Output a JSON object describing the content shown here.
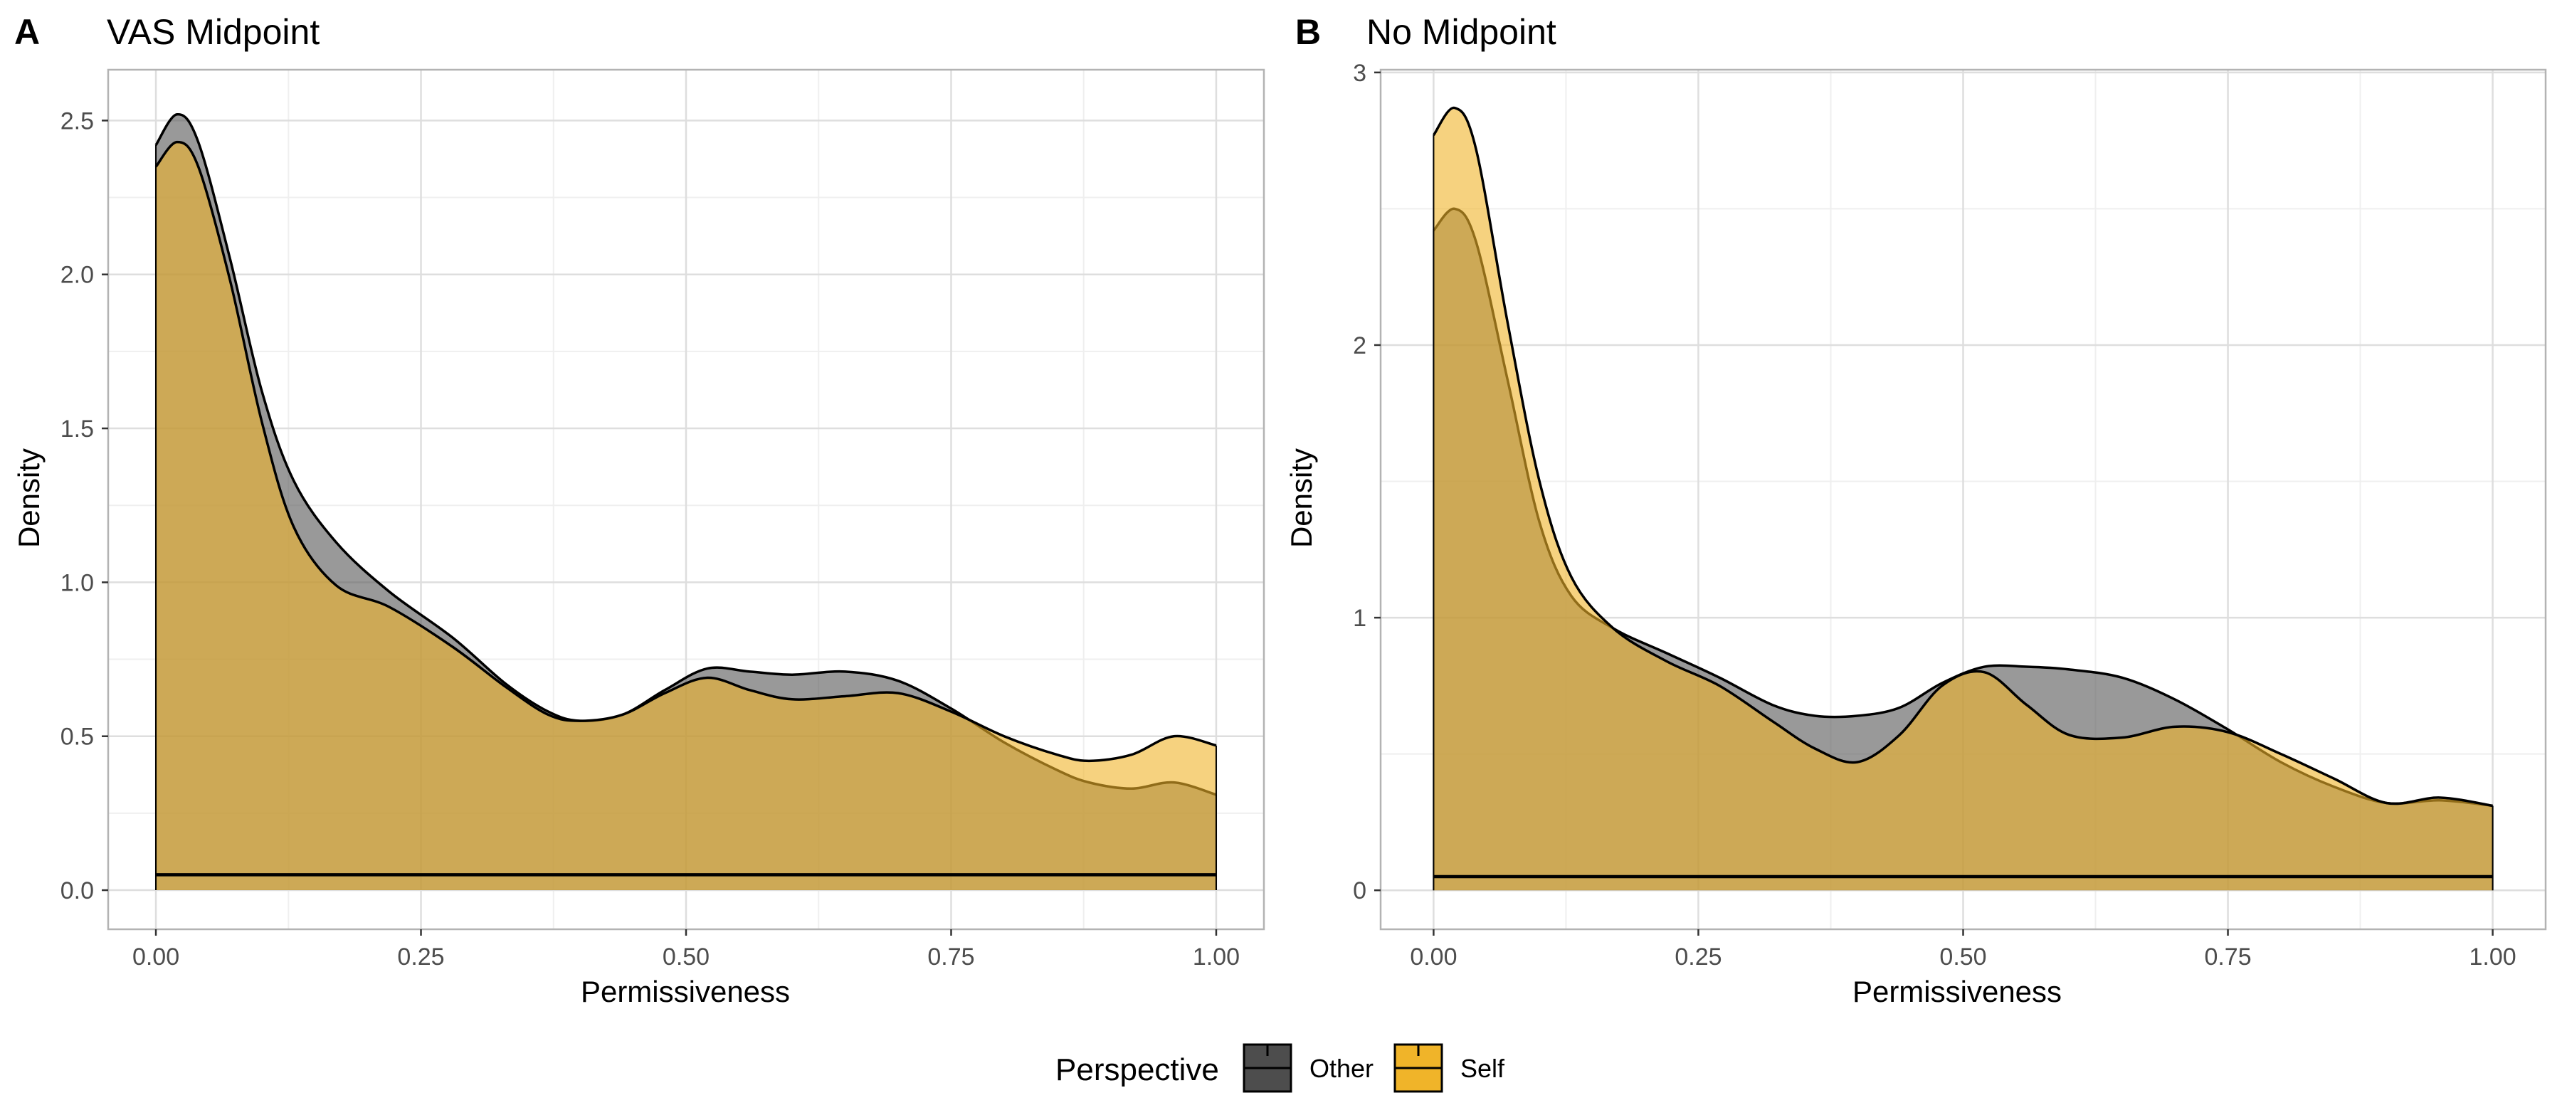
{
  "figure": {
    "legend": {
      "title": "Perspective",
      "placement": "bottom",
      "items": [
        {
          "label": "Other",
          "fill": "#4d4d4d",
          "line": "#000000"
        },
        {
          "label": "Self",
          "fill": "#f0b429",
          "line": "#000000"
        }
      ]
    },
    "colors": {
      "other_fill": "#555555",
      "self_fill": "#f0b429",
      "overlap_look": "#b39a5e",
      "panel_border": "#b3b3b3",
      "grid_major": "#dedede",
      "grid_minor": "#efefef",
      "tick_text": "#4d4d4d"
    }
  },
  "chart_data": [
    {
      "type": "area",
      "panel_tag": "A",
      "title": "VAS Midpoint",
      "xlabel": "Permissiveness",
      "ylabel": "Density",
      "xlim": [
        -0.045,
        1.045
      ],
      "ylim": [
        -0.127,
        2.665
      ],
      "x_ticks": [
        0,
        0.25,
        0.5,
        0.75,
        1
      ],
      "x_tick_labels": [
        "0.00",
        "0.25",
        "0.50",
        "0.75",
        "1.00"
      ],
      "y_ticks": [
        0,
        0.5,
        1,
        1.5,
        2,
        2.5
      ],
      "y_tick_labels": [
        "0.0",
        "0.5",
        "1.0",
        "1.5",
        "2.0",
        "2.5"
      ],
      "grid": true,
      "baseline_y": 0.05,
      "series": [
        {
          "name": "Other",
          "x": [
            0,
            0.02,
            0.04,
            0.07,
            0.1,
            0.13,
            0.17,
            0.22,
            0.28,
            0.33,
            0.37,
            0.4,
            0.44,
            0.48,
            0.52,
            0.56,
            0.6,
            0.65,
            0.7,
            0.75,
            0.8,
            0.85,
            0.88,
            0.92,
            0.96,
            1.0
          ],
          "y": [
            2.42,
            2.52,
            2.43,
            2.05,
            1.62,
            1.33,
            1.13,
            0.97,
            0.82,
            0.67,
            0.58,
            0.55,
            0.57,
            0.65,
            0.72,
            0.71,
            0.7,
            0.71,
            0.68,
            0.59,
            0.48,
            0.39,
            0.35,
            0.33,
            0.35,
            0.31
          ]
        },
        {
          "name": "Self",
          "x": [
            0,
            0.02,
            0.04,
            0.07,
            0.1,
            0.13,
            0.17,
            0.22,
            0.28,
            0.33,
            0.37,
            0.4,
            0.44,
            0.48,
            0.52,
            0.56,
            0.6,
            0.65,
            0.7,
            0.75,
            0.8,
            0.85,
            0.88,
            0.92,
            0.96,
            1.0
          ],
          "y": [
            2.35,
            2.43,
            2.35,
            1.98,
            1.52,
            1.18,
            0.99,
            0.92,
            0.79,
            0.66,
            0.57,
            0.55,
            0.57,
            0.64,
            0.69,
            0.65,
            0.62,
            0.63,
            0.64,
            0.58,
            0.5,
            0.44,
            0.42,
            0.44,
            0.5,
            0.47
          ]
        }
      ]
    },
    {
      "type": "area",
      "panel_tag": "B",
      "title": "No Midpoint",
      "xlabel": "Permissiveness",
      "ylabel": "Density",
      "xlim": [
        -0.05,
        1.05
      ],
      "ylim": [
        -0.143,
        3.01
      ],
      "x_ticks": [
        0,
        0.25,
        0.5,
        0.75,
        1
      ],
      "x_tick_labels": [
        "0.00",
        "0.25",
        "0.50",
        "0.75",
        "1.00"
      ],
      "y_ticks": [
        0,
        1,
        2,
        3
      ],
      "y_tick_labels": [
        "0",
        "1",
        "2",
        "3"
      ],
      "grid": true,
      "baseline_y": 0.05,
      "series": [
        {
          "name": "Other",
          "x": [
            0,
            0.02,
            0.04,
            0.07,
            0.1,
            0.13,
            0.17,
            0.22,
            0.27,
            0.32,
            0.36,
            0.4,
            0.44,
            0.48,
            0.52,
            0.56,
            0.6,
            0.65,
            0.7,
            0.75,
            0.8,
            0.85,
            0.9,
            0.95,
            1.0
          ],
          "y": [
            2.42,
            2.5,
            2.38,
            1.87,
            1.35,
            1.08,
            0.96,
            0.87,
            0.78,
            0.68,
            0.64,
            0.64,
            0.67,
            0.76,
            0.82,
            0.82,
            0.81,
            0.78,
            0.7,
            0.59,
            0.47,
            0.38,
            0.32,
            0.33,
            0.31
          ]
        },
        {
          "name": "Self",
          "x": [
            0,
            0.02,
            0.04,
            0.07,
            0.1,
            0.13,
            0.17,
            0.22,
            0.27,
            0.32,
            0.36,
            0.4,
            0.44,
            0.48,
            0.52,
            0.56,
            0.6,
            0.65,
            0.7,
            0.75,
            0.8,
            0.85,
            0.9,
            0.95,
            1.0
          ],
          "y": [
            2.77,
            2.87,
            2.72,
            2.08,
            1.5,
            1.15,
            0.96,
            0.84,
            0.75,
            0.62,
            0.52,
            0.47,
            0.57,
            0.75,
            0.8,
            0.68,
            0.57,
            0.56,
            0.6,
            0.58,
            0.5,
            0.41,
            0.32,
            0.34,
            0.31
          ]
        }
      ]
    }
  ]
}
